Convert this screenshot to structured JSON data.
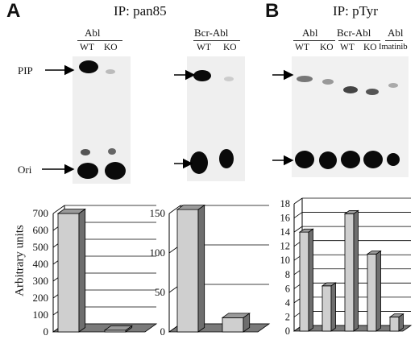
{
  "panels": {
    "A": {
      "letter": "A",
      "ip": "IP: pan85"
    },
    "B": {
      "letter": "B",
      "ip": "IP: pTyr"
    }
  },
  "blot_labels": {
    "abl": "Abl",
    "bcr_abl": "Bcr-Abl",
    "wt": "WT",
    "ko": "KO",
    "imatinib": "Imatinib",
    "pip": "PIP",
    "ori": "Ori"
  },
  "chart_data": [
    {
      "type": "bar",
      "ylabel": "Arbitrary units",
      "categories": [
        "WT",
        "KO"
      ],
      "values": [
        700,
        10
      ],
      "ylim": [
        0,
        700
      ],
      "yticks": [
        0,
        100,
        200,
        300,
        400,
        500,
        600,
        700
      ],
      "grid": true
    },
    {
      "type": "bar",
      "categories": [
        "WT",
        "KO"
      ],
      "values": [
        155,
        18
      ],
      "ylim": [
        0,
        150
      ],
      "yticks": [
        0,
        50,
        100,
        150
      ],
      "grid": true
    },
    {
      "type": "bar",
      "categories": [
        "Abl WT",
        "Abl KO",
        "Bcr-Abl WT",
        "Bcr-Abl KO",
        "Abl Imatinib"
      ],
      "values": [
        14,
        6.4,
        16.6,
        10.9,
        2
      ],
      "ylim": [
        0,
        18
      ],
      "yticks": [
        0,
        2,
        4,
        6,
        8,
        10,
        12,
        14,
        16,
        18
      ],
      "grid": true
    }
  ]
}
